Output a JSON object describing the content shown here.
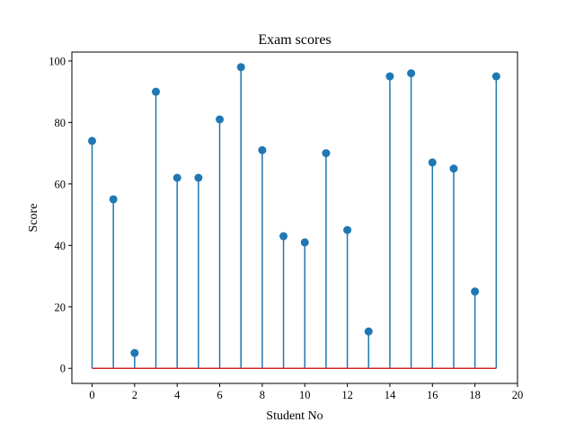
{
  "chart_data": {
    "type": "stem",
    "title": "Exam scores",
    "xlabel": "Student No",
    "ylabel": "Score",
    "x": [
      0,
      1,
      2,
      3,
      4,
      5,
      6,
      7,
      8,
      9,
      10,
      11,
      12,
      13,
      14,
      15,
      16,
      17,
      18,
      19
    ],
    "values": [
      74,
      55,
      5,
      90,
      62,
      62,
      81,
      98,
      71,
      43,
      41,
      70,
      45,
      12,
      95,
      96,
      67,
      65,
      25,
      95
    ],
    "xlim": [
      -0.95,
      20
    ],
    "ylim": [
      -4.9,
      102.9
    ],
    "xticks": [
      "0",
      "2",
      "4",
      "6",
      "8",
      "10",
      "12",
      "14",
      "16",
      "18",
      "20"
    ],
    "yticks": [
      "0",
      "20",
      "40",
      "60",
      "80",
      "100"
    ],
    "baseline": 0,
    "grid": false,
    "colors": {
      "stem": "#1f77b4",
      "marker": "#1f77b4",
      "baseline": "#d62728",
      "axes": "#000000"
    }
  }
}
